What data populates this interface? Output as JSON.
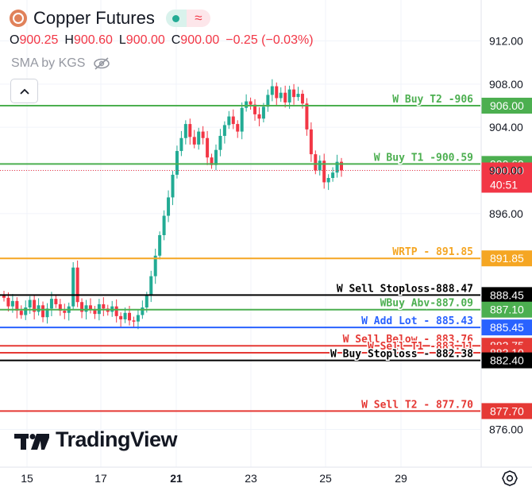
{
  "header": {
    "symbol_title": "Copper Futures",
    "market_status_glyph": "≈",
    "ohlc": [
      {
        "key": "O",
        "value": "900.25"
      },
      {
        "key": "H",
        "value": "900.60"
      },
      {
        "key": "L",
        "value": "900.00"
      },
      {
        "key": "C",
        "value": "900.00"
      }
    ],
    "change": "−0.25 (−0.03%)",
    "indicator": "SMA by KGS"
  },
  "brand": {
    "name": "TradingView"
  },
  "colors": {
    "up": "#22ab94",
    "down": "#f23645",
    "green_line": "#4caf50",
    "orange_line": "#f5a623",
    "black_line": "#000000",
    "blue_line": "#2962ff",
    "red_line": "#e53935"
  },
  "chart_data": {
    "type": "candlestick",
    "x_tick_labels": [
      "15",
      "17",
      "21",
      "23",
      "25",
      "29"
    ],
    "y_tick_labels": [
      "876.00",
      "896.00",
      "900.00",
      "904.00",
      "908.00",
      "912.00"
    ],
    "ylim": [
      874.5,
      913.5
    ],
    "current_price": "900.00",
    "countdown": "40:51",
    "levels": [
      {
        "label": "W Buy T2 -906",
        "price": 906.0,
        "tag": "906.00",
        "color": "#4caf50"
      },
      {
        "label": "W Buy T1 -900.59",
        "price": 900.6,
        "tag": "900.60",
        "color": "#4caf50"
      },
      {
        "label": "WRTP - 891.85",
        "price": 891.85,
        "tag": "891.85",
        "color": "#f5a623"
      },
      {
        "label": "W Sell Stoploss-888.47",
        "price": 888.45,
        "tag": "888.45",
        "color": "#000000"
      },
      {
        "label": "WBuy Abv-887.09",
        "price": 887.1,
        "tag": "887.10",
        "color": "#4caf50"
      },
      {
        "label": "W Add Lot - 885.43",
        "price": 885.45,
        "tag": "885.45",
        "color": "#2962ff"
      },
      {
        "label": "W Sell Below - 883.76",
        "price": 883.75,
        "tag": "883.75",
        "color": "#e53935"
      },
      {
        "label": "W Sell T1 -883.11",
        "price": 883.1,
        "tag": "883.10",
        "color": "#e53935"
      },
      {
        "label": "W Buy Stoploss - 882.38",
        "price": 882.4,
        "tag": "882.40",
        "color": "#000000"
      },
      {
        "label": "W Sell T2 - 877.70",
        "price": 877.7,
        "tag": "877.70",
        "color": "#e53935"
      }
    ],
    "close_series": [
      888.2,
      887.4,
      887.9,
      887.0,
      886.6,
      887.3,
      888.0,
      886.9,
      887.5,
      886.4,
      887.2,
      888.1,
      887.6,
      887.0,
      886.8,
      887.4,
      891.0,
      887.8,
      886.9,
      887.5,
      887.1,
      886.7,
      887.6,
      887.2,
      886.9,
      887.4,
      886.5,
      886.2,
      886.8,
      886.1,
      886.0,
      886.6,
      887.3,
      888.4,
      890.2,
      892.1,
      894.0,
      895.8,
      897.5,
      899.6,
      901.8,
      903.0,
      904.3,
      903.1,
      902.4,
      903.6,
      903.0,
      901.2,
      900.5,
      901.9,
      903.2,
      904.2,
      905.0,
      904.3,
      903.6,
      905.8,
      906.4,
      906.1,
      905.2,
      904.8,
      905.9,
      907.0,
      907.8,
      906.7,
      907.2,
      906.3,
      907.5,
      906.8,
      907.1,
      906.2,
      903.8,
      901.5,
      900.0,
      900.9,
      898.9,
      899.3,
      899.8,
      900.8,
      900.0
    ]
  }
}
